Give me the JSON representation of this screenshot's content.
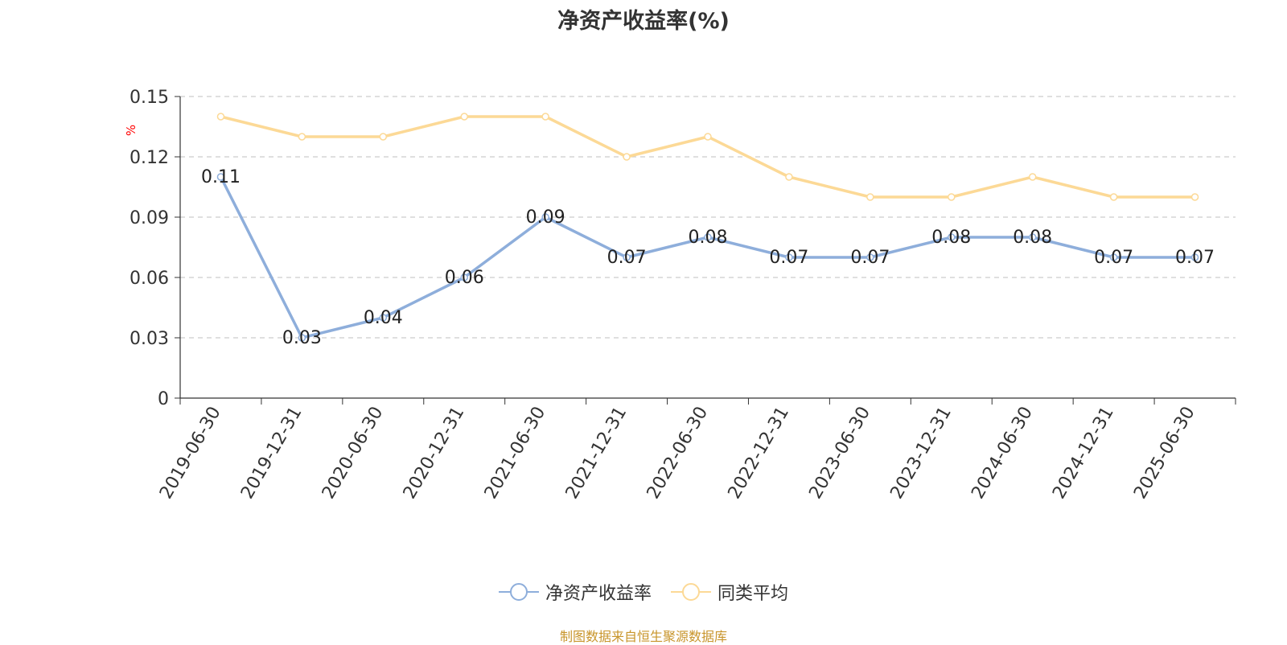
{
  "title": "净资产收益率(%)",
  "footer": "制图数据来自恒生聚源数据库",
  "chart_data": {
    "type": "line",
    "title": "净资产收益率(%)",
    "ylabel": "%",
    "ylim": [
      0,
      0.15
    ],
    "yticks": [
      0,
      0.03,
      0.06,
      0.09,
      0.12,
      0.15
    ],
    "ytick_labels": [
      "0",
      "0.03",
      "0.06",
      "0.09",
      "0.12",
      "0.15"
    ],
    "grid": true,
    "legend_position": "bottom",
    "categories": [
      "2019-06-30",
      "2019-12-31",
      "2020-06-30",
      "2020-12-31",
      "2021-06-30",
      "2021-12-31",
      "2022-06-30",
      "2022-12-31",
      "2023-06-30",
      "2023-12-31",
      "2024-06-30",
      "2024-12-31",
      "2025-06-30"
    ],
    "series": [
      {
        "name": "净资产收益率",
        "color": "#8eaedb",
        "values": [
          0.11,
          0.03,
          0.04,
          0.06,
          0.09,
          0.07,
          0.08,
          0.07,
          0.07,
          0.08,
          0.08,
          0.07,
          0.07
        ],
        "labels": [
          "0.11",
          "0.03",
          "0.04",
          "0.06",
          "0.09",
          "0.07",
          "0.08",
          "0.07",
          "0.07",
          "0.08",
          "0.08",
          "0.07",
          "0.07"
        ]
      },
      {
        "name": "同类平均",
        "color": "#fcd996",
        "values": [
          0.14,
          0.13,
          0.13,
          0.14,
          0.14,
          0.12,
          0.13,
          0.11,
          0.1,
          0.1,
          0.11,
          0.1,
          0.1
        ]
      }
    ]
  }
}
